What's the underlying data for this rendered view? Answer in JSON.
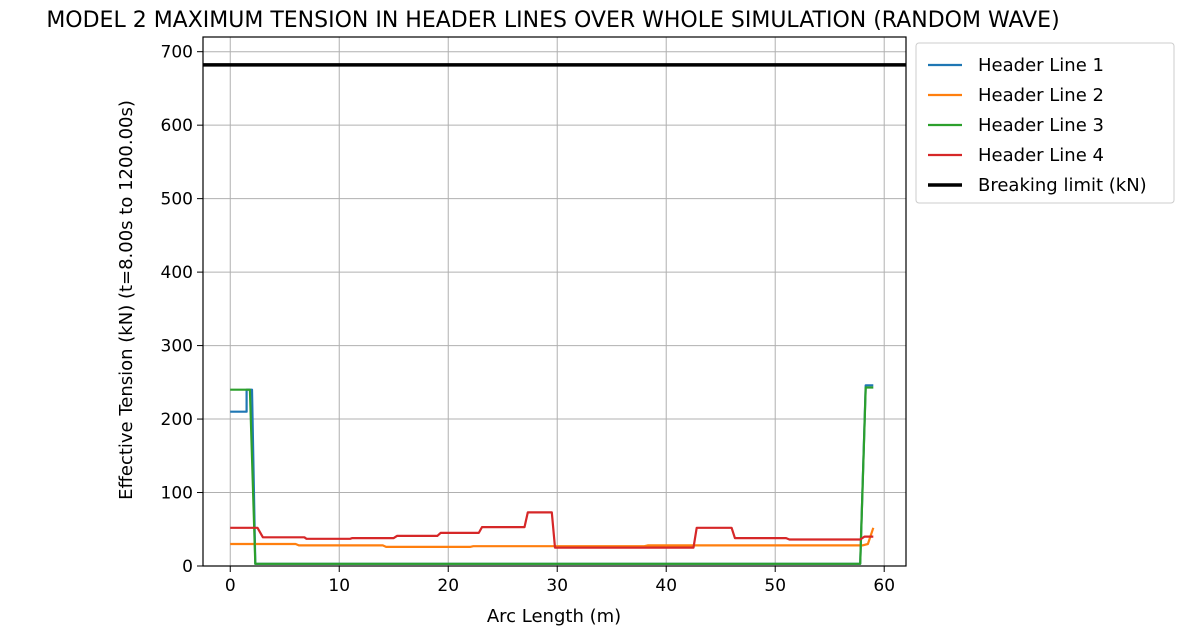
{
  "chart_data": {
    "type": "line",
    "title": "MODEL 2 MAXIMUM TENSION IN HEADER LINES OVER WHOLE SIMULATION (RANDOM WAVE)",
    "xlabel": "Arc Length (m)",
    "ylabel": "Effective Tension (kN)  (t=8.00s to 1200.00s)",
    "xlim": [
      -2.5,
      62
    ],
    "ylim": [
      0,
      720
    ],
    "xticks": [
      0,
      10,
      20,
      30,
      40,
      50,
      60
    ],
    "yticks": [
      0,
      100,
      200,
      300,
      400,
      500,
      600,
      700
    ],
    "grid": true,
    "legend_position": "outside-top-right",
    "series": [
      {
        "name": "Header Line 1",
        "color": "#1f77b4",
        "x": [
          0,
          1.5,
          1.5,
          2.0,
          2.3,
          2.3,
          57.8,
          58.3,
          58.3,
          59.0
        ],
        "y": [
          210,
          210,
          240,
          240,
          3,
          3,
          3,
          246,
          246,
          246
        ]
      },
      {
        "name": "Header Line 2",
        "color": "#ff7f0e",
        "x": [
          0,
          6,
          6.3,
          14,
          14.3,
          22,
          22.3,
          38,
          38.3,
          58,
          58.5,
          59
        ],
        "y": [
          30,
          30,
          28,
          28,
          26,
          26,
          27,
          27,
          28,
          28,
          30,
          52
        ]
      },
      {
        "name": "Header Line 3",
        "color": "#2ca02c",
        "x": [
          0,
          1.8,
          2.3,
          57.8,
          58.3,
          59
        ],
        "y": [
          240,
          240,
          3,
          3,
          243,
          243
        ]
      },
      {
        "name": "Header Line 4",
        "color": "#d62728",
        "x": [
          0,
          2.5,
          3,
          6.8,
          7,
          11,
          11.2,
          15,
          15.3,
          19,
          19.3,
          22.8,
          23.1,
          27,
          27.3,
          29.5,
          29.8,
          42.5,
          42.8,
          46,
          46.3,
          51,
          51.3,
          57.8,
          58.2,
          59
        ],
        "y": [
          52,
          52,
          39,
          39,
          37,
          37,
          38,
          38,
          41,
          41,
          45,
          45,
          53,
          53,
          73,
          73,
          25,
          25,
          52,
          52,
          38,
          38,
          36,
          36,
          40,
          40
        ]
      },
      {
        "name": "Breaking limit (kN)",
        "color": "#000000",
        "x": [
          -2.5,
          62
        ],
        "y": [
          682,
          682
        ]
      }
    ]
  }
}
